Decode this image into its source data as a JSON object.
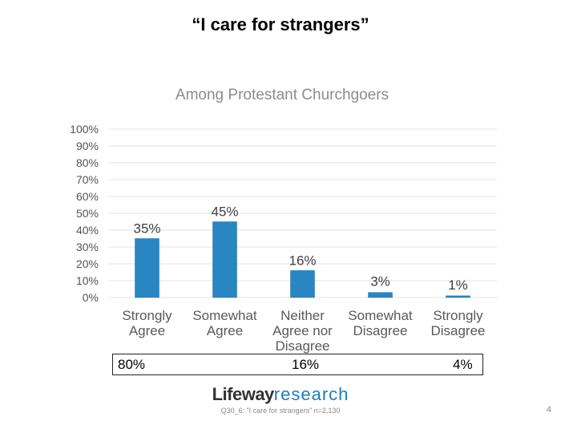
{
  "title": "“I care for strangers”",
  "chart_data": {
    "type": "bar",
    "title": "Among Protestant Churchgoers",
    "categories": [
      "Strongly\nAgree",
      "Somewhat\nAgree",
      "Neither\nAgree nor\nDisagree",
      "Somewhat\nDisagree",
      "Strongly\nDisagree"
    ],
    "values": [
      35,
      45,
      16,
      3,
      1
    ],
    "data_labels": [
      "35%",
      "45%",
      "16%",
      "3%",
      "1%"
    ],
    "yticks": [
      "0%",
      "10%",
      "20%",
      "30%",
      "40%",
      "50%",
      "60%",
      "70%",
      "80%",
      "90%",
      "100%"
    ],
    "ylim": [
      0,
      100
    ],
    "grid": true,
    "xlabel": "",
    "ylabel": "",
    "bar_color": "#2a86c3"
  },
  "summary": {
    "agree": "80%",
    "neither": "16%",
    "disagree": "4%"
  },
  "logo": {
    "part1": "Lifeway",
    "part2": "research"
  },
  "footnote": "Q30_6: “I care for strangers”  n=2,130",
  "page_number": "4"
}
